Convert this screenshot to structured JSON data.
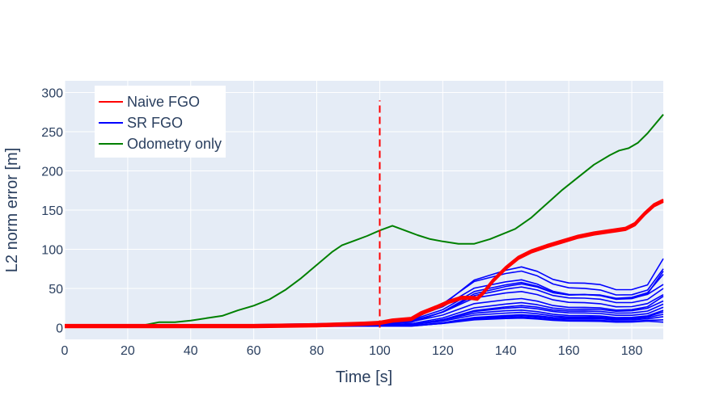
{
  "chart_data": {
    "type": "line",
    "xlabel": "Time [s]",
    "ylabel": "L2 norm error [m]",
    "xlim": [
      0,
      190
    ],
    "ylim": [
      -15,
      315
    ],
    "xticks": [
      0,
      20,
      40,
      60,
      80,
      100,
      120,
      140,
      160,
      180
    ],
    "yticks": [
      0,
      50,
      100,
      150,
      200,
      250,
      300
    ],
    "grid": true,
    "plot_background": "#e5ecf6",
    "legend_position": "top-left",
    "legend": [
      {
        "label": "Naive FGO",
        "color": "#ff0000"
      },
      {
        "label": "SR FGO",
        "color": "#0000ff"
      },
      {
        "label": "Odometry only",
        "color": "#008000"
      }
    ],
    "vertical_marker": {
      "x": 100,
      "y_from": 0,
      "y_to": 290,
      "color": "#ff0000",
      "style": "dashed"
    },
    "series": [
      {
        "name": "Odometry only",
        "color": "#008000",
        "points": [
          [
            0,
            1
          ],
          [
            10,
            1
          ],
          [
            20,
            2
          ],
          [
            25,
            3
          ],
          [
            30,
            7
          ],
          [
            35,
            7
          ],
          [
            40,
            9
          ],
          [
            45,
            12
          ],
          [
            50,
            15
          ],
          [
            55,
            22
          ],
          [
            60,
            28
          ],
          [
            65,
            36
          ],
          [
            70,
            48
          ],
          [
            75,
            63
          ],
          [
            80,
            80
          ],
          [
            85,
            97
          ],
          [
            88,
            105
          ],
          [
            92,
            111
          ],
          [
            96,
            117
          ],
          [
            100,
            124
          ],
          [
            104,
            130
          ],
          [
            108,
            124
          ],
          [
            112,
            118
          ],
          [
            116,
            113
          ],
          [
            120,
            110
          ],
          [
            125,
            107
          ],
          [
            130,
            107
          ],
          [
            135,
            113
          ],
          [
            140,
            121
          ],
          [
            143,
            126
          ],
          [
            148,
            140
          ],
          [
            153,
            158
          ],
          [
            158,
            176
          ],
          [
            163,
            192
          ],
          [
            168,
            208
          ],
          [
            173,
            220
          ],
          [
            176,
            226
          ],
          [
            179,
            229
          ],
          [
            182,
            236
          ],
          [
            185,
            248
          ],
          [
            190,
            272
          ]
        ]
      },
      {
        "name": "Naive FGO",
        "color": "#ff0000",
        "points": [
          [
            0,
            2
          ],
          [
            20,
            2
          ],
          [
            40,
            2
          ],
          [
            60,
            2
          ],
          [
            80,
            3
          ],
          [
            95,
            5
          ],
          [
            100,
            6
          ],
          [
            104,
            9
          ],
          [
            110,
            11
          ],
          [
            113,
            18
          ],
          [
            118,
            26
          ],
          [
            122,
            33
          ],
          [
            126,
            38
          ],
          [
            129,
            38
          ],
          [
            131,
            37
          ],
          [
            133,
            45
          ],
          [
            136,
            60
          ],
          [
            140,
            76
          ],
          [
            144,
            89
          ],
          [
            148,
            97
          ],
          [
            153,
            104
          ],
          [
            158,
            110
          ],
          [
            163,
            116
          ],
          [
            168,
            120
          ],
          [
            173,
            123
          ],
          [
            178,
            126
          ],
          [
            181,
            132
          ],
          [
            184,
            145
          ],
          [
            187,
            156
          ],
          [
            190,
            162
          ]
        ]
      },
      {
        "name": "SR FGO",
        "color": "#0000ff",
        "runs": [
          {
            "max": 75,
            "end": 88
          },
          {
            "max": 70,
            "end": 75
          },
          {
            "max": 62,
            "end": 72
          },
          {
            "max": 60,
            "end": 68
          },
          {
            "max": 56,
            "end": 55
          },
          {
            "max": 50,
            "end": 50
          },
          {
            "max": 45,
            "end": 42
          },
          {
            "max": 38,
            "end": 40
          },
          {
            "max": 33,
            "end": 34
          },
          {
            "max": 28,
            "end": 30
          },
          {
            "max": 25,
            "end": 26
          },
          {
            "max": 22,
            "end": 22
          },
          {
            "max": 20,
            "end": 20
          },
          {
            "max": 17,
            "end": 17
          },
          {
            "max": 15,
            "end": 14
          },
          {
            "max": 13,
            "end": 10
          },
          {
            "max": 12,
            "end": 7
          }
        ]
      }
    ]
  }
}
